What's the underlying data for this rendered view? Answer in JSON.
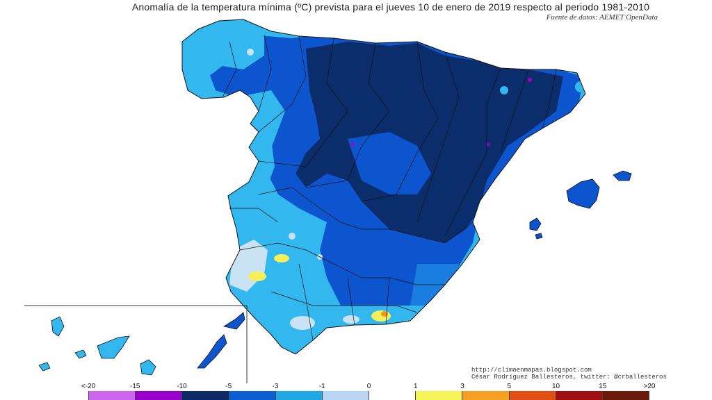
{
  "header": {
    "title": "Anomalía de la temperatura mínima (ºC) prevista para el jueves 10 de enero de 2019 respecto al periodo 1981-2010",
    "source": "Fuente de datos: AEMET OpenData"
  },
  "credits": {
    "url": "http://climaenmapas.blogspot.com",
    "author": "César Rodríguez Ballesteros, twitter: @crballesteros"
  },
  "legend": {
    "labels": [
      "<-20",
      "-15",
      "-10",
      "-5",
      "-3",
      "-1",
      "0",
      "1",
      "3",
      "5",
      "10",
      "15",
      ">20"
    ],
    "colors": [
      "#cc66ee",
      "#9900cc",
      "#0d2a66",
      "#0b5fd1",
      "#20a8e6",
      "#b9d7f2",
      "#ffffff",
      "#f5f55a",
      "#f5a020",
      "#e05015",
      "#a01010",
      "#6b1a0c"
    ]
  },
  "colors": {
    "very_dark_blue": "#0b2d6b",
    "dark_blue": "#0d55cf",
    "medium_blue": "#1a7ee0",
    "light_blue": "#32b8ee",
    "pale_blue": "#c9e3f5",
    "yellow": "#f5f05a",
    "orange": "#f09a1c",
    "purple": "#a000c8"
  }
}
